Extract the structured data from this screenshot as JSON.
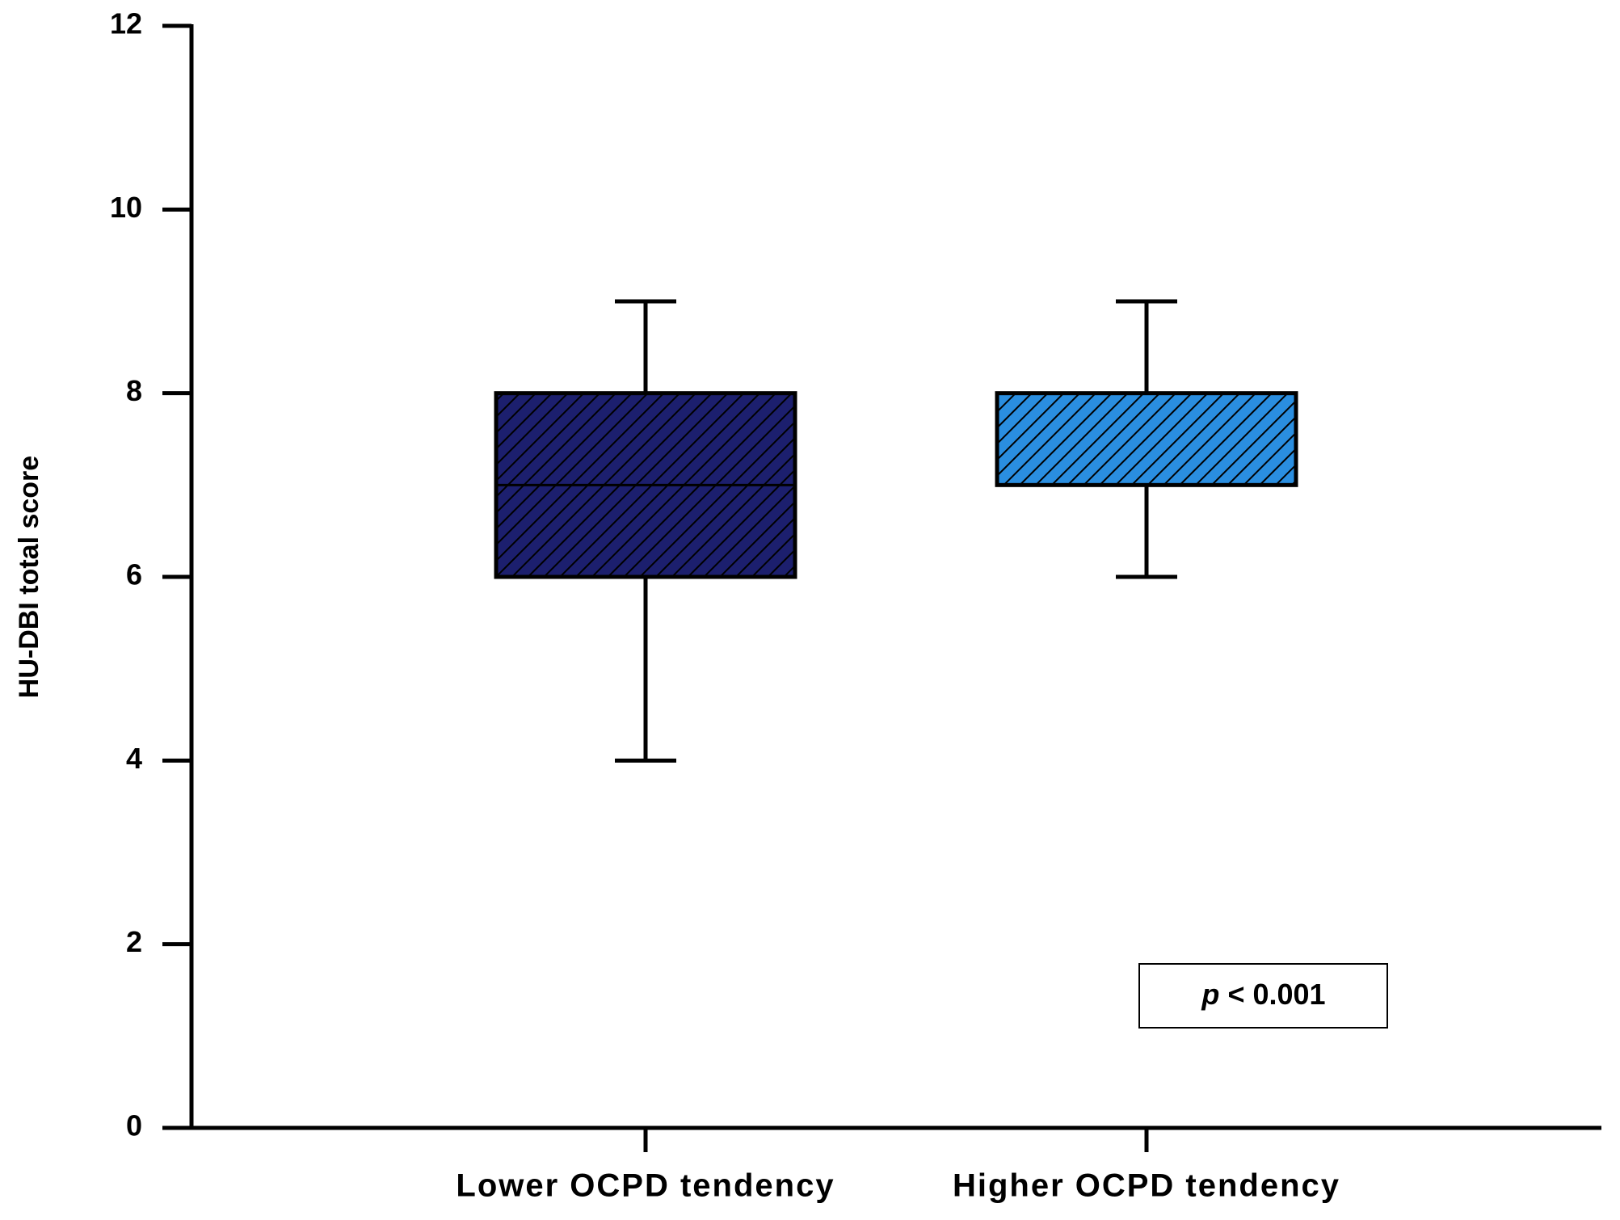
{
  "chart_data": {
    "type": "box",
    "y_label": "HU-DBI total score",
    "categories": [
      "Lower OCPD tendency",
      "Higher OCPD tendency"
    ],
    "boxes": [
      {
        "min": 4,
        "q1": 6,
        "median": 7,
        "q3": 8,
        "max": 9,
        "color": "#1c1f6e"
      },
      {
        "min": 6,
        "q1": 7,
        "median": 7,
        "q3": 8,
        "max": 9,
        "color": "#2a8ee0"
      }
    ],
    "ylim": [
      0,
      12
    ],
    "yticks": [
      0,
      2,
      4,
      6,
      8,
      10,
      12
    ],
    "annotation": {
      "italic": "p",
      "text": "< 0.001"
    }
  }
}
